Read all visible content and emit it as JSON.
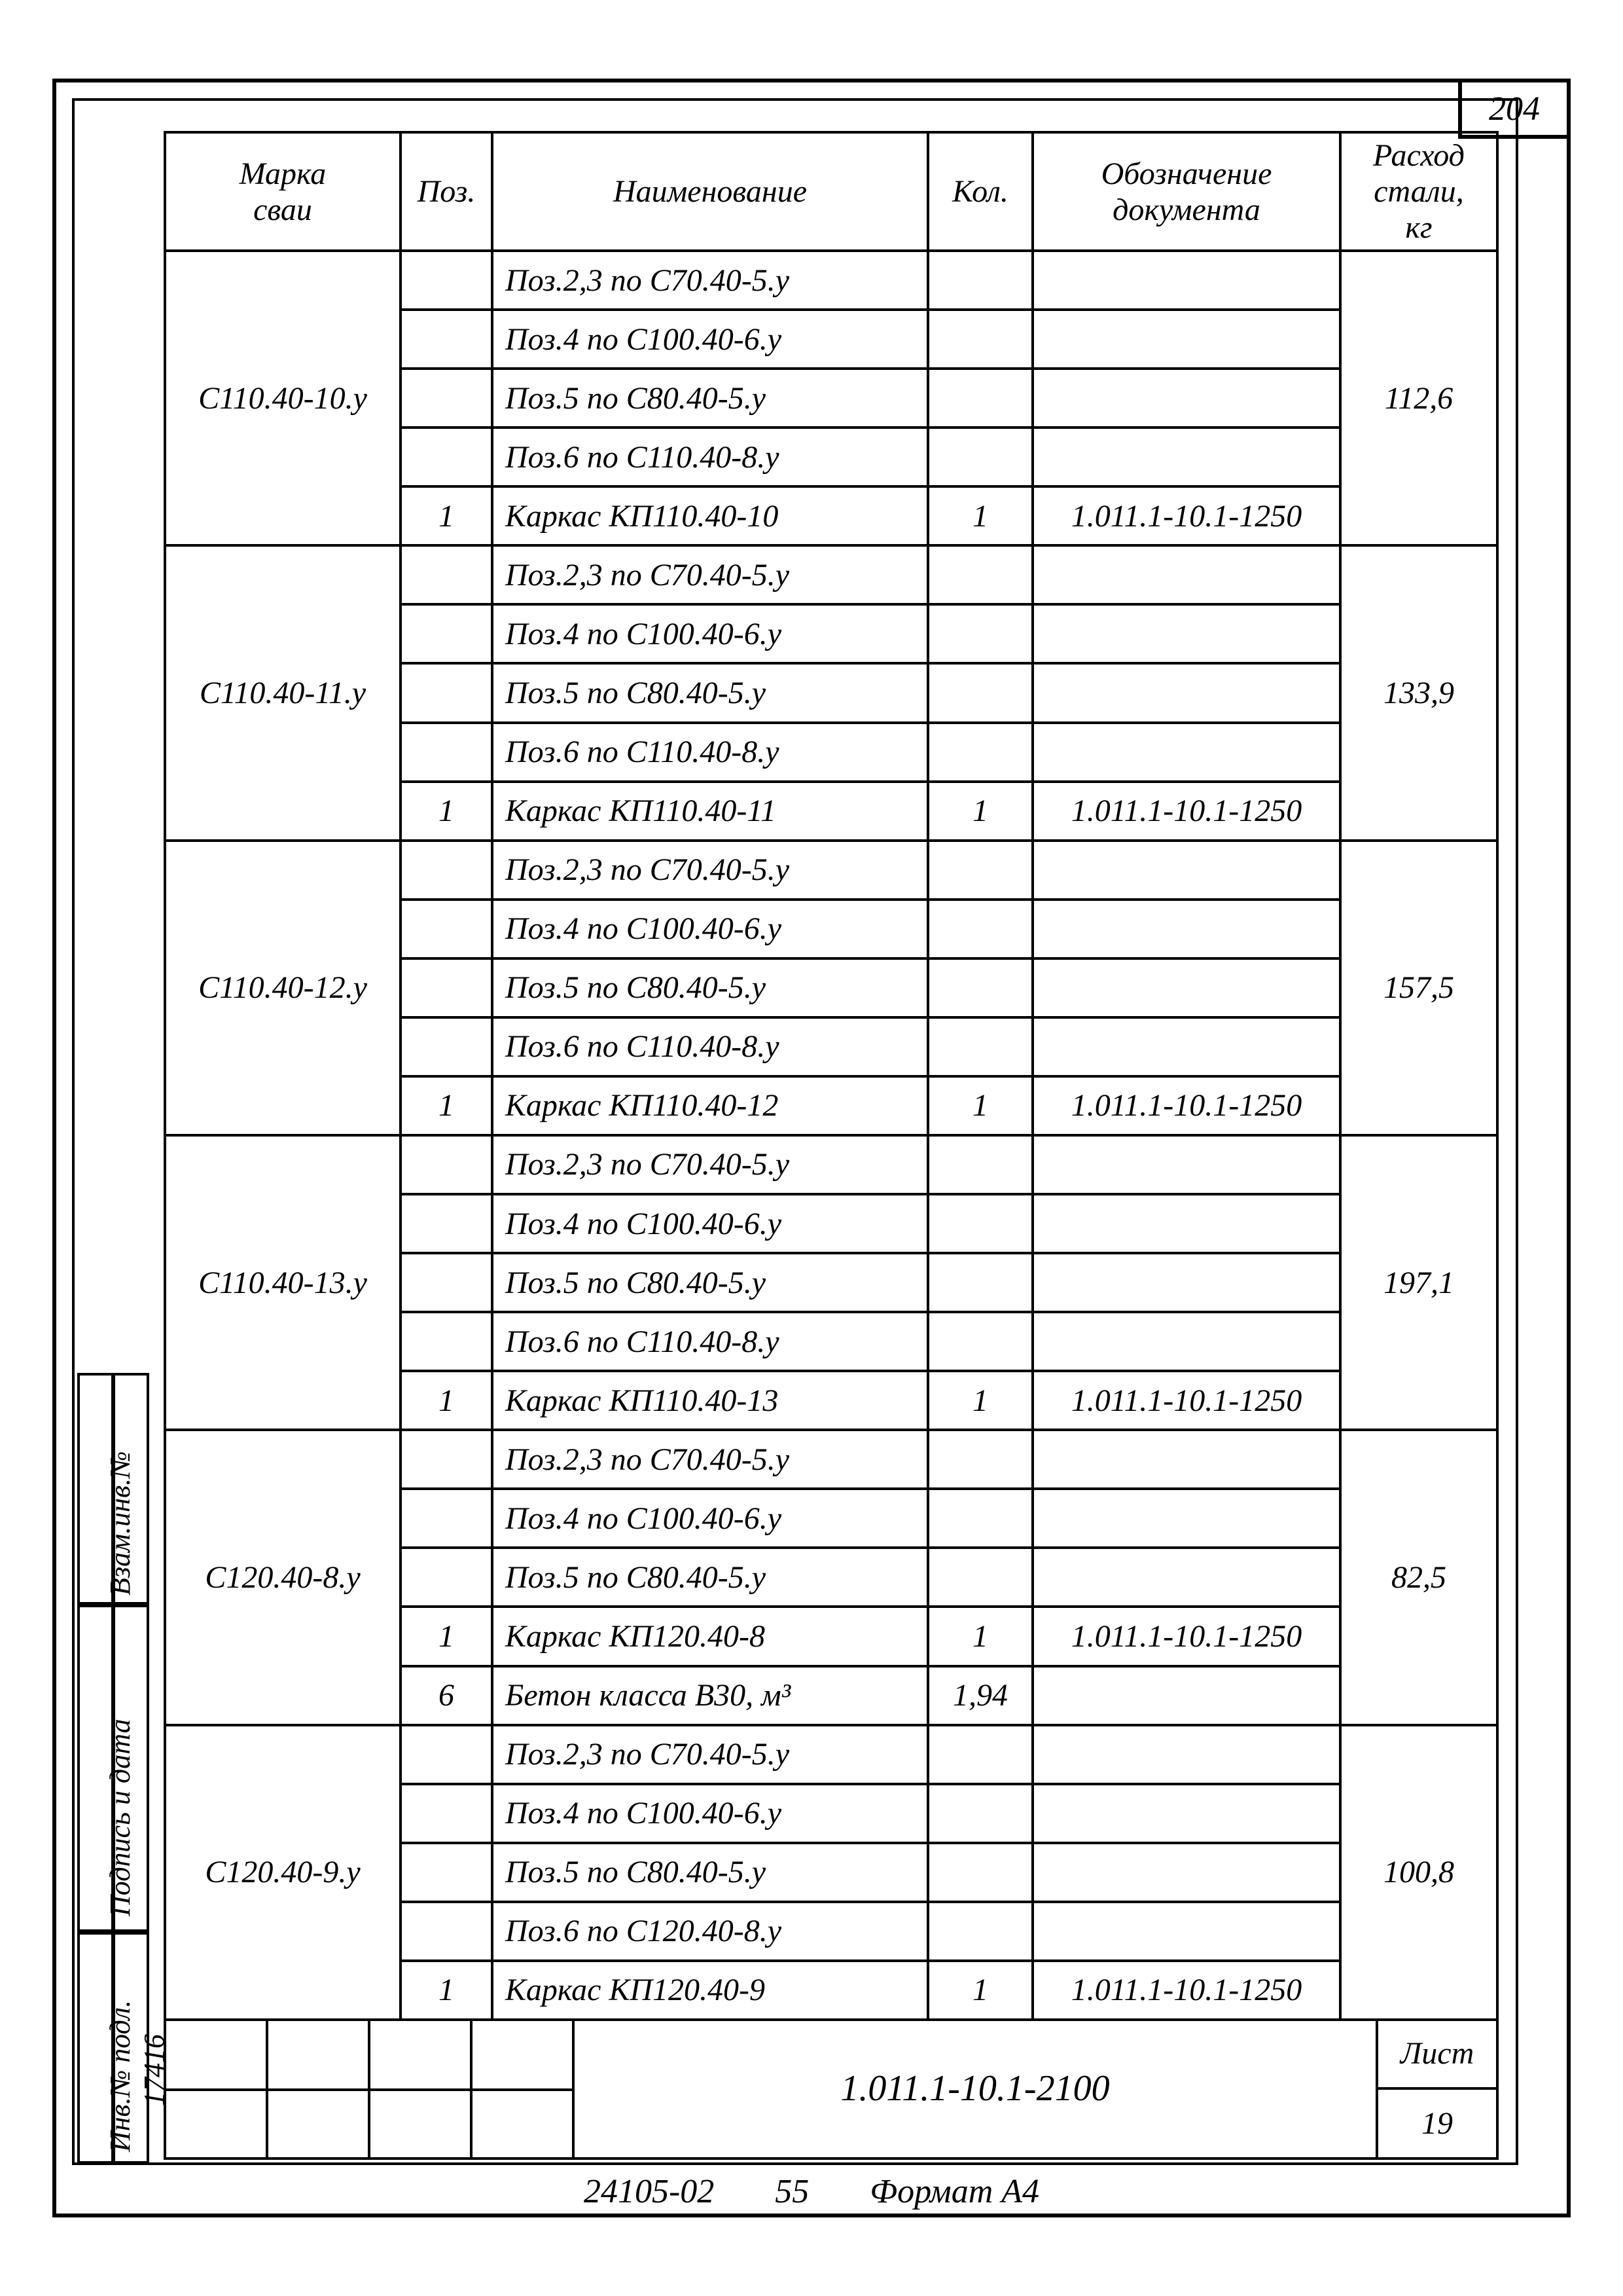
{
  "page_number": "204",
  "header": {
    "marka": "Марка\nсваи",
    "pos": "Поз.",
    "name": "Наименование",
    "kol": "Кол.",
    "doc": "Обозначение\nдокумента",
    "rate": "Расход\nстали,\nкг"
  },
  "groups": [
    {
      "marka": "С110.40-10.у",
      "rate": "112,6",
      "rows": [
        {
          "pos": "",
          "name": "Поз.2,3 по С70.40-5.у",
          "kol": "",
          "doc": ""
        },
        {
          "pos": "",
          "name": "Поз.4 по С100.40-6.у",
          "kol": "",
          "doc": ""
        },
        {
          "pos": "",
          "name": "Поз.5 по С80.40-5.у",
          "kol": "",
          "doc": ""
        },
        {
          "pos": "",
          "name": "Поз.6 по С110.40-8.у",
          "kol": "",
          "doc": ""
        },
        {
          "pos": "1",
          "name": "Каркас КП110.40-10",
          "kol": "1",
          "doc": "1.011.1-10.1-1250"
        }
      ]
    },
    {
      "marka": "С110.40-11.у",
      "rate": "133,9",
      "rows": [
        {
          "pos": "",
          "name": "Поз.2,3 по С70.40-5.у",
          "kol": "",
          "doc": ""
        },
        {
          "pos": "",
          "name": "Поз.4 по С100.40-6.у",
          "kol": "",
          "doc": ""
        },
        {
          "pos": "",
          "name": "Поз.5 по С80.40-5.у",
          "kol": "",
          "doc": ""
        },
        {
          "pos": "",
          "name": "Поз.6 по С110.40-8.у",
          "kol": "",
          "doc": ""
        },
        {
          "pos": "1",
          "name": "Каркас КП110.40-11",
          "kol": "1",
          "doc": "1.011.1-10.1-1250"
        }
      ]
    },
    {
      "marka": "С110.40-12.у",
      "rate": "157,5",
      "rows": [
        {
          "pos": "",
          "name": "Поз.2,3 по С70.40-5.у",
          "kol": "",
          "doc": ""
        },
        {
          "pos": "",
          "name": "Поз.4 по С100.40-6.у",
          "kol": "",
          "doc": ""
        },
        {
          "pos": "",
          "name": "Поз.5 по С80.40-5.у",
          "kol": "",
          "doc": ""
        },
        {
          "pos": "",
          "name": "Поз.6 по С110.40-8.у",
          "kol": "",
          "doc": ""
        },
        {
          "pos": "1",
          "name": "Каркас КП110.40-12",
          "kol": "1",
          "doc": "1.011.1-10.1-1250"
        }
      ]
    },
    {
      "marka": "С110.40-13.у",
      "rate": "197,1",
      "rows": [
        {
          "pos": "",
          "name": "Поз.2,3 по С70.40-5.у",
          "kol": "",
          "doc": ""
        },
        {
          "pos": "",
          "name": "Поз.4 по С100.40-6.у",
          "kol": "",
          "doc": ""
        },
        {
          "pos": "",
          "name": "Поз.5 по С80.40-5.у",
          "kol": "",
          "doc": ""
        },
        {
          "pos": "",
          "name": "Поз.6 по С110.40-8.у",
          "kol": "",
          "doc": ""
        },
        {
          "pos": "1",
          "name": "Каркас КП110.40-13",
          "kol": "1",
          "doc": "1.011.1-10.1-1250"
        }
      ]
    },
    {
      "marka": "С120.40-8.у",
      "rate": "82,5",
      "rows": [
        {
          "pos": "",
          "name": "Поз.2,3 по С70.40-5.у",
          "kol": "",
          "doc": ""
        },
        {
          "pos": "",
          "name": "Поз.4 по С100.40-6.у",
          "kol": "",
          "doc": ""
        },
        {
          "pos": "",
          "name": "Поз.5 по С80.40-5.у",
          "kol": "",
          "doc": ""
        },
        {
          "pos": "1",
          "name": "Каркас КП120.40-8",
          "kol": "1",
          "doc": "1.011.1-10.1-1250"
        },
        {
          "pos": "6",
          "name": "Бетон класса В30, м³",
          "kol": "1,94",
          "doc": ""
        }
      ]
    },
    {
      "marka": "С120.40-9.у",
      "rate": "100,8",
      "rows": [
        {
          "pos": "",
          "name": "Поз.2,3 по С70.40-5.у",
          "kol": "",
          "doc": ""
        },
        {
          "pos": "",
          "name": "Поз.4 по С100.40-6.у",
          "kol": "",
          "doc": ""
        },
        {
          "pos": "",
          "name": "Поз.5 по С80.40-5.у",
          "kol": "",
          "doc": ""
        },
        {
          "pos": "",
          "name": "Поз.6 по С120.40-8.у",
          "kol": "",
          "doc": ""
        },
        {
          "pos": "1",
          "name": "Каркас КП120.40-9",
          "kol": "1",
          "doc": "1.011.1-10.1-1250"
        }
      ]
    }
  ],
  "side": {
    "vzam": "Взам.инв.№",
    "podpis": "Подпись и дата",
    "inv": "Инв.№ подл.",
    "inv_no": "17416"
  },
  "titleblock": {
    "doc_no": "1.011.1-10.1-2100",
    "sheet_label": "Лист",
    "sheet_no": "19"
  },
  "footer": {
    "code": "24105-02",
    "num": "55",
    "format": "Формат А4"
  }
}
